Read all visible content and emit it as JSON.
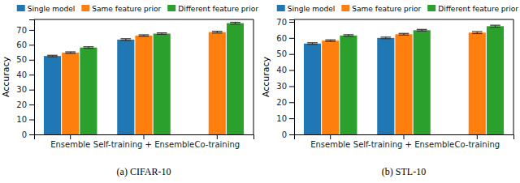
{
  "chart_data": [
    {
      "type": "bar",
      "title": "(a) CIFAR-10",
      "y_label": "Accuracy",
      "categories": [
        "Ensemble",
        "Self-training + Ensemble",
        "Co-training"
      ],
      "series": [
        {
          "name": "Single model",
          "color": "#1f77b4",
          "values": [
            52.5,
            63.5,
            null
          ],
          "errors": [
            0.5,
            0.6,
            null
          ]
        },
        {
          "name": "Same feature prior",
          "color": "#ff7f0e",
          "values": [
            54.8,
            66.2,
            68.5
          ],
          "errors": [
            0.5,
            0.5,
            0.6
          ]
        },
        {
          "name": "Different feature prior",
          "color": "#2ca02c",
          "values": [
            58.2,
            67.5,
            74.5
          ],
          "errors": [
            0.5,
            0.5,
            0.6
          ]
        }
      ],
      "ylim": [
        0,
        77
      ],
      "yticks": [
        0,
        10,
        20,
        30,
        40,
        50,
        60,
        70
      ],
      "legend": "top"
    },
    {
      "type": "bar",
      "title": "(b) STL-10",
      "y_label": "Accuracy",
      "categories": [
        "Ensemble",
        "Self-training + Ensemble",
        "Co-training"
      ],
      "series": [
        {
          "name": "Single model",
          "color": "#1f77b4",
          "values": [
            56.5,
            60.0,
            null
          ],
          "errors": [
            0.5,
            0.5,
            null
          ]
        },
        {
          "name": "Same feature prior",
          "color": "#ff7f0e",
          "values": [
            58.3,
            62.3,
            63.3
          ],
          "errors": [
            0.5,
            0.5,
            0.6
          ]
        },
        {
          "name": "Different feature prior",
          "color": "#2ca02c",
          "values": [
            61.5,
            64.8,
            67.3
          ],
          "errors": [
            0.5,
            0.5,
            0.6
          ]
        }
      ],
      "ylim": [
        0,
        71.5
      ],
      "yticks": [
        0,
        10,
        20,
        30,
        40,
        50,
        60,
        70
      ],
      "legend": "top"
    }
  ]
}
